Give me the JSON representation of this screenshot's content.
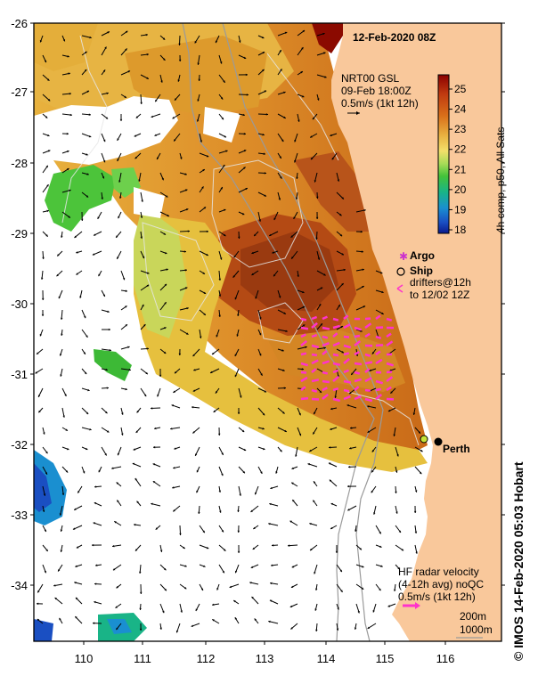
{
  "title": "12-Feb-2020 08Z",
  "gsl": {
    "line1": "NRT00 GSL",
    "line2": "09-Feb 18:00Z",
    "line3": "0.5m/s (1kt 12h)"
  },
  "colorbar": {
    "title": "4h comp, p50, All Sats",
    "ticks": [
      "25",
      "24",
      "23",
      "22",
      "21",
      "20",
      "19",
      "18"
    ],
    "colors": [
      "#8b0000",
      "#c03a10",
      "#d9701a",
      "#e39a2a",
      "#eec25a",
      "#f3df6a",
      "#c9e262",
      "#8fd64e",
      "#43c23a",
      "#19b487",
      "#1a8fd0",
      "#1a4fc2",
      "#0a1a8c"
    ]
  },
  "legend": {
    "argo": "Argo",
    "ship": "Ship",
    "drifters_line1": "drifters@12h",
    "drifters_line2": "to 12/02 12Z",
    "argo_color": "#cc33cc",
    "drifter_color": "#ff33cc"
  },
  "hf": {
    "line1": "HF radar velocity",
    "line2": "(4-12h avg) noQC",
    "line3": "0.5m/s (1kt 12h)"
  },
  "depth": {
    "a": "200m",
    "b": "1000m"
  },
  "city": "Perth",
  "credit": "© IMOS 14-Feb-2020 05:03 Hobart",
  "axes": {
    "x_ticks": [
      "110",
      "111",
      "112",
      "113",
      "114",
      "115",
      "116"
    ],
    "y_ticks": [
      "-26",
      "-27",
      "-28",
      "-29",
      "-30",
      "-31",
      "-32",
      "-33",
      "-34"
    ]
  },
  "colors": {
    "land": "#f9c89b",
    "frame": "#000000"
  }
}
